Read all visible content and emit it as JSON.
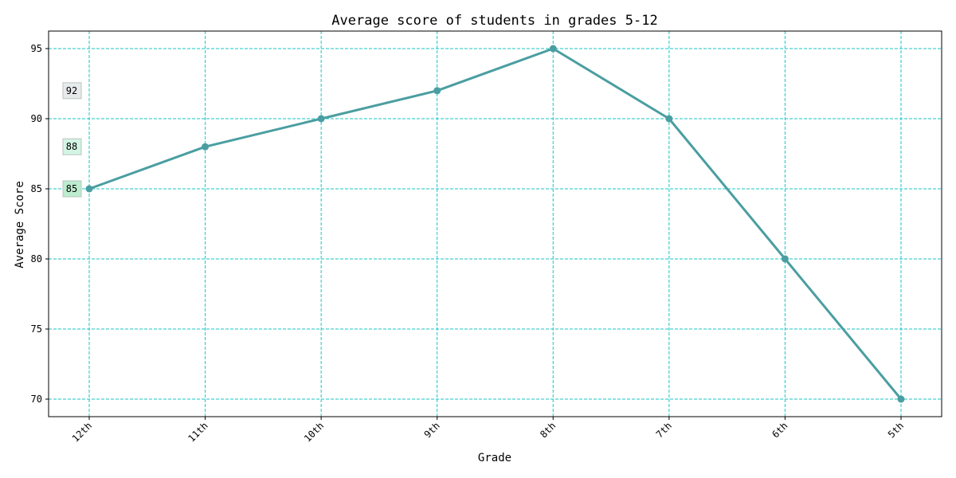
{
  "chart_data": {
    "type": "line",
    "title": "Average score of students in grades 5-12",
    "xlabel": "Grade",
    "ylabel": "Average Score",
    "categories": [
      "12th",
      "11th",
      "10th",
      "9th",
      "8th",
      "7th",
      "6th",
      "5th"
    ],
    "series": [
      {
        "values": [
          85,
          88,
          90,
          92,
          95,
          90,
          80,
          70
        ]
      }
    ],
    "ylim": [
      68.75,
      96.25
    ],
    "yticks": [
      70,
      75,
      80,
      85,
      90,
      95
    ],
    "grid": true,
    "annotations": [
      {
        "text": "92",
        "y": 92,
        "color": "#e6eaeb"
      },
      {
        "text": "88",
        "y": 88,
        "color": "#d4f5e4"
      },
      {
        "text": "85",
        "y": 85,
        "color": "#bdeccf"
      }
    ],
    "colors": {
      "line": "#4a9ea1",
      "grid": "#19c6c6",
      "annotation_border": "#b9c4c0"
    }
  }
}
